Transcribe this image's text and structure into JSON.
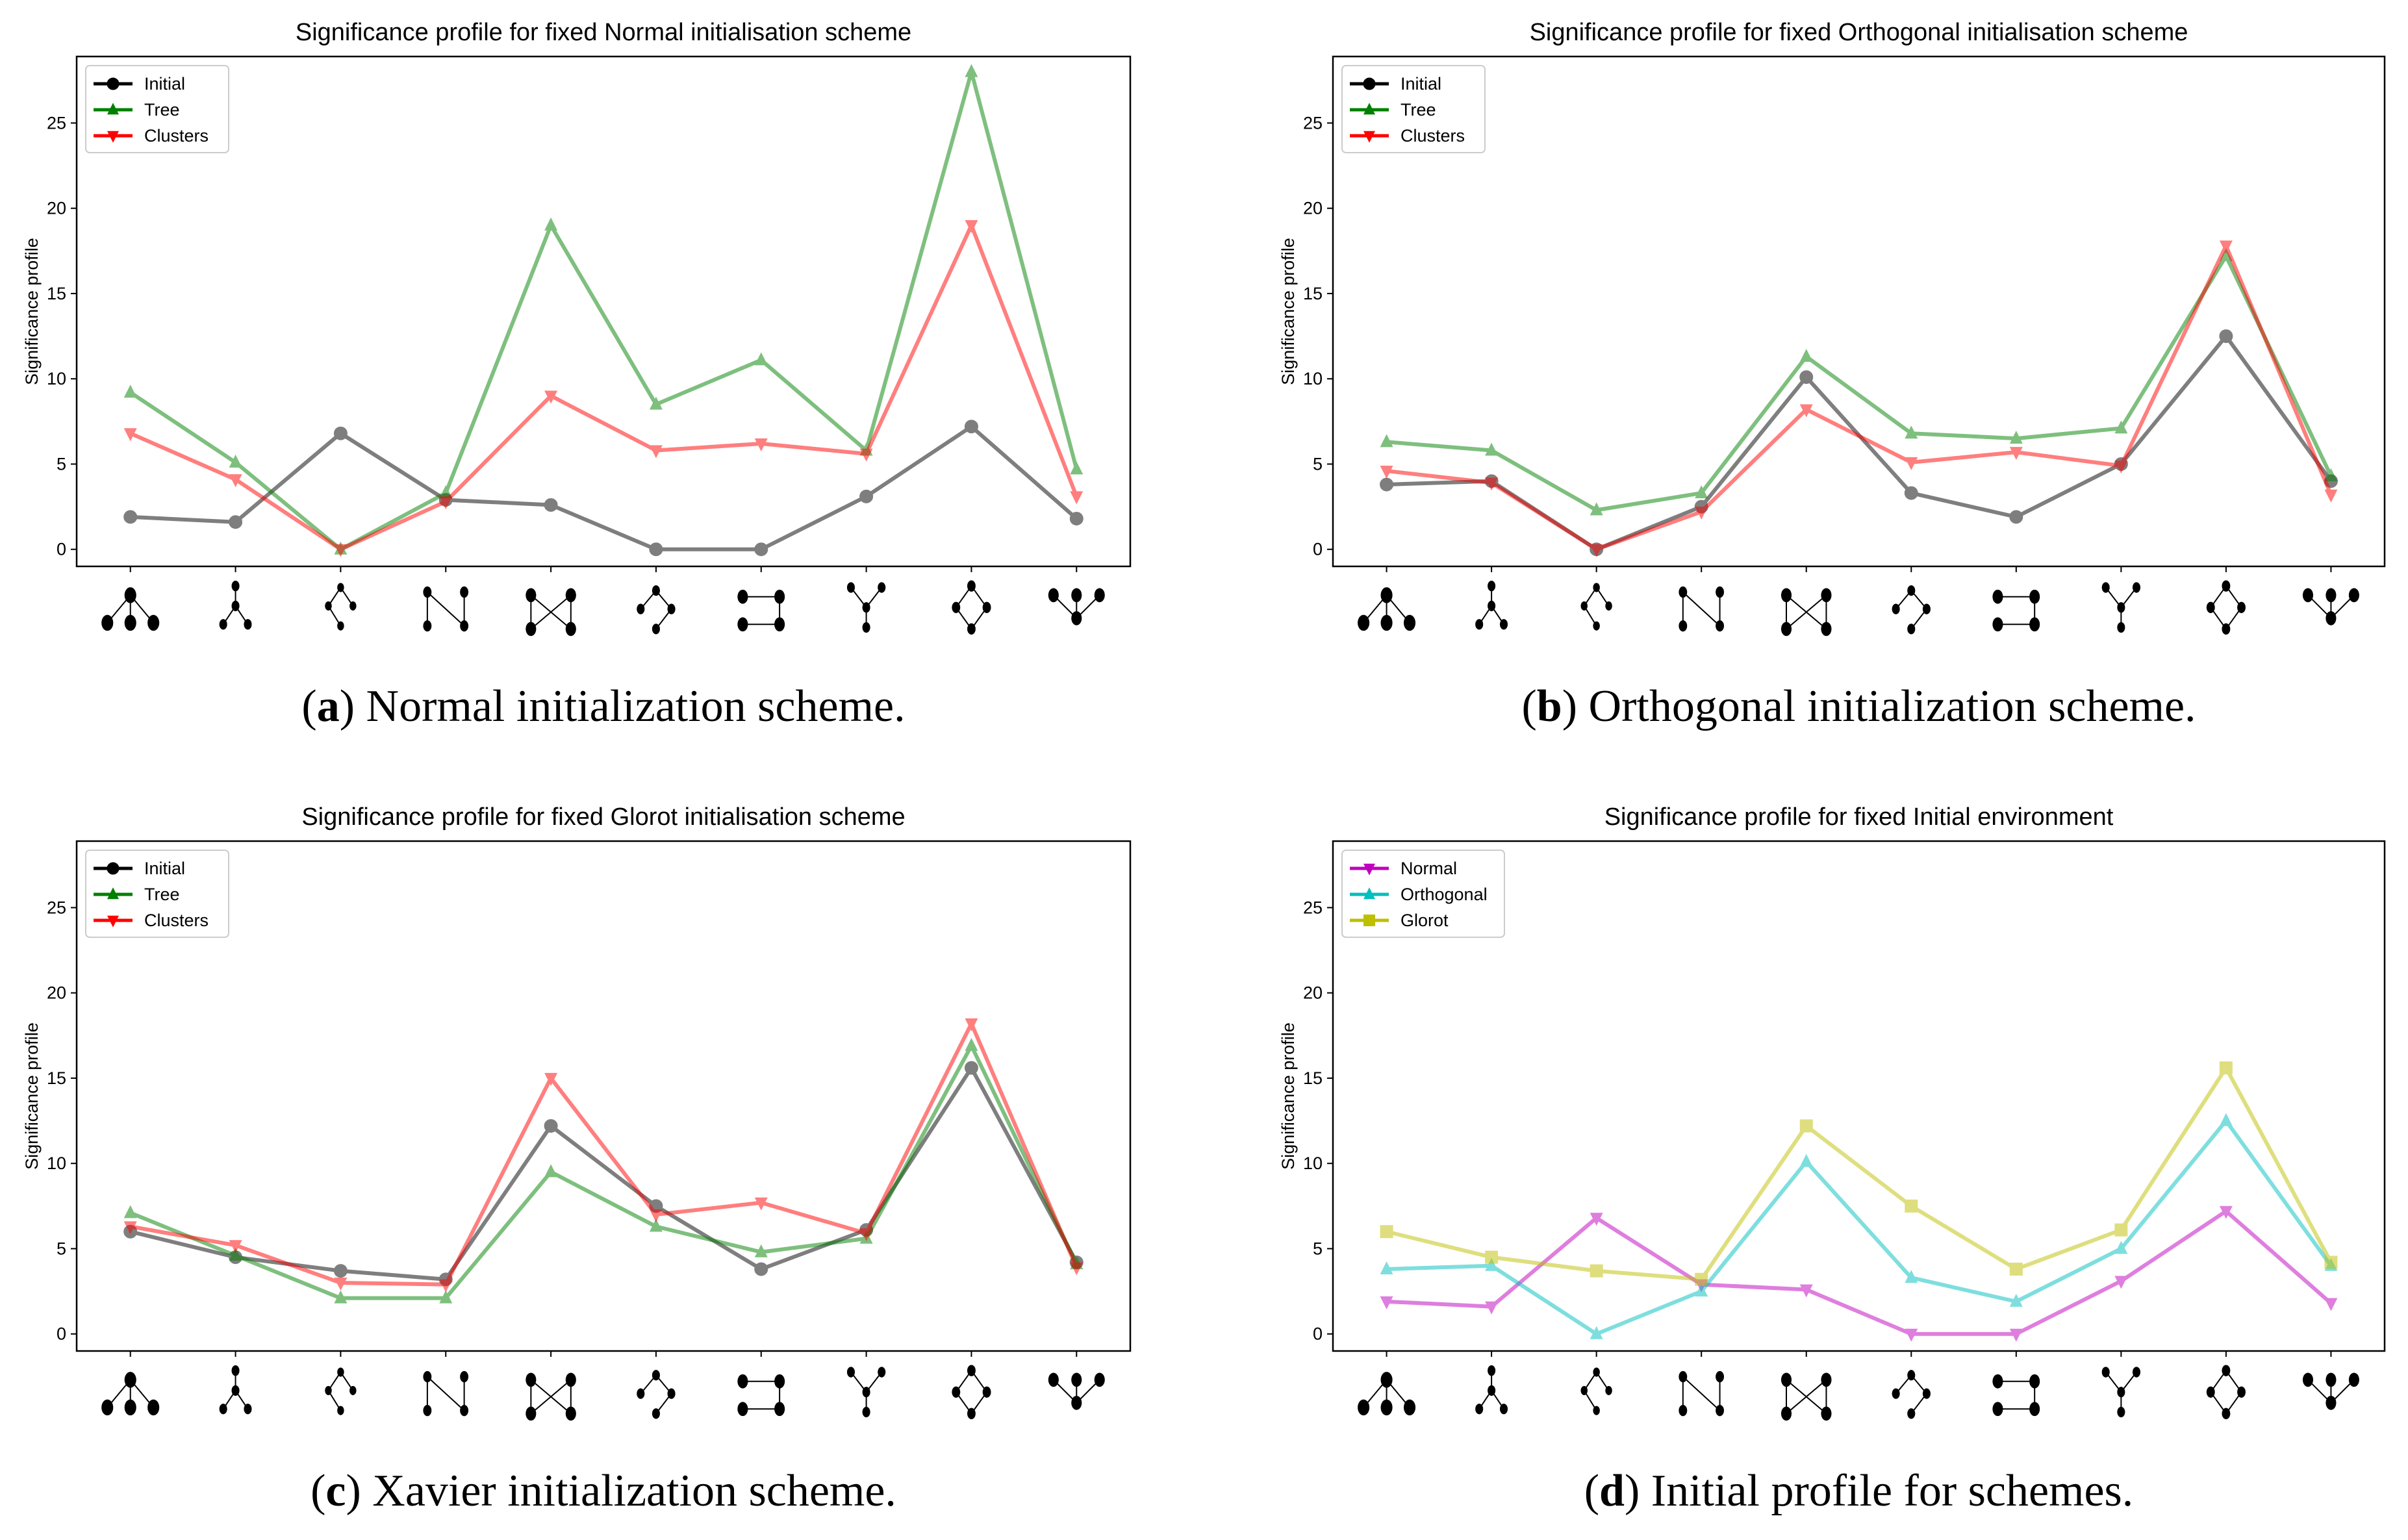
{
  "chart_data": [
    {
      "type": "line",
      "title": "Significance profile for fixed Normal initialisation scheme",
      "caption_letter": "a",
      "caption_text": "Normal initialization scheme.",
      "xlabel": "",
      "ylabel": "Significance profile",
      "ylim": [
        -1.0,
        28.9
      ],
      "yticks": [
        "0",
        "5",
        "10",
        "15",
        "20",
        "25"
      ],
      "x": [
        0,
        1,
        2,
        3,
        4,
        5,
        6,
        7,
        8,
        9
      ],
      "legend_position": "top-left",
      "series": [
        {
          "name": "Initial",
          "color": "#000000",
          "marker": "circle",
          "values": [
            1.9,
            1.6,
            6.8,
            2.9,
            2.6,
            0.0,
            0.0,
            3.1,
            7.2,
            1.8
          ]
        },
        {
          "name": "Tree",
          "color": "#008000",
          "marker": "triangle-up",
          "values": [
            9.2,
            5.1,
            0.0,
            3.3,
            19.0,
            8.5,
            11.1,
            5.8,
            28.0,
            4.7
          ]
        },
        {
          "name": "Clusters",
          "color": "#ff0000",
          "marker": "triangle-down",
          "values": [
            6.8,
            4.1,
            0.0,
            2.8,
            9.0,
            5.8,
            6.2,
            5.6,
            19.0,
            3.1
          ]
        }
      ]
    },
    {
      "type": "line",
      "title": "Significance profile for fixed Orthogonal initialisation scheme",
      "caption_letter": "b",
      "caption_text": "Orthogonal initialization scheme.",
      "xlabel": "",
      "ylabel": "Significance profile",
      "ylim": [
        -1.0,
        28.9
      ],
      "yticks": [
        "0",
        "5",
        "10",
        "15",
        "20",
        "25"
      ],
      "x": [
        0,
        1,
        2,
        3,
        4,
        5,
        6,
        7,
        8,
        9
      ],
      "legend_position": "top-left",
      "series": [
        {
          "name": "Initial",
          "color": "#000000",
          "marker": "circle",
          "values": [
            3.8,
            4.0,
            0.0,
            2.5,
            10.1,
            3.3,
            1.9,
            5.0,
            12.5,
            4.0
          ]
        },
        {
          "name": "Tree",
          "color": "#008000",
          "marker": "triangle-up",
          "values": [
            6.3,
            5.8,
            2.3,
            3.3,
            11.3,
            6.8,
            6.5,
            7.1,
            17.2,
            4.3
          ]
        },
        {
          "name": "Clusters",
          "color": "#ff0000",
          "marker": "triangle-down",
          "values": [
            4.6,
            3.9,
            0.0,
            2.2,
            8.2,
            5.1,
            5.7,
            4.9,
            17.8,
            3.2
          ]
        }
      ]
    },
    {
      "type": "line",
      "title": "Significance profile for fixed Glorot initialisation scheme",
      "caption_letter": "c",
      "caption_text": "Xavier initialization scheme.",
      "xlabel": "",
      "ylabel": "Significance profile",
      "ylim": [
        -1.0,
        28.9
      ],
      "yticks": [
        "0",
        "5",
        "10",
        "15",
        "20",
        "25"
      ],
      "x": [
        0,
        1,
        2,
        3,
        4,
        5,
        6,
        7,
        8,
        9
      ],
      "legend_position": "top-left",
      "series": [
        {
          "name": "Initial",
          "color": "#000000",
          "marker": "circle",
          "values": [
            6.0,
            4.5,
            3.7,
            3.2,
            12.2,
            7.5,
            3.8,
            6.1,
            15.6,
            4.2
          ]
        },
        {
          "name": "Tree",
          "color": "#008000",
          "marker": "triangle-up",
          "values": [
            7.1,
            4.6,
            2.1,
            2.1,
            9.5,
            6.3,
            4.8,
            5.6,
            16.9,
            4.1
          ]
        },
        {
          "name": "Clusters",
          "color": "#ff0000",
          "marker": "triangle-down",
          "values": [
            6.3,
            5.2,
            3.0,
            2.9,
            15.0,
            7.0,
            7.7,
            5.9,
            18.2,
            3.9
          ]
        }
      ]
    },
    {
      "type": "line",
      "title": "Significance profile for fixed Initial environment",
      "caption_letter": "d",
      "caption_text": "Initial profile for schemes.",
      "xlabel": "",
      "ylabel": "Significance profile",
      "ylim": [
        -1.0,
        28.9
      ],
      "yticks": [
        "0",
        "5",
        "10",
        "15",
        "20",
        "25"
      ],
      "x": [
        0,
        1,
        2,
        3,
        4,
        5,
        6,
        7,
        8,
        9
      ],
      "legend_position": "top-left",
      "series": [
        {
          "name": "Normal",
          "color": "#bf00bf",
          "marker": "triangle-down",
          "values": [
            1.9,
            1.6,
            6.8,
            2.9,
            2.6,
            0.0,
            0.0,
            3.1,
            7.2,
            1.8
          ]
        },
        {
          "name": "Orthogonal",
          "color": "#00bfbf",
          "marker": "triangle-up",
          "values": [
            3.8,
            4.0,
            0.0,
            2.5,
            10.1,
            3.3,
            1.9,
            5.0,
            12.5,
            4.0
          ]
        },
        {
          "name": "Glorot",
          "color": "#bfbf00",
          "marker": "square",
          "values": [
            6.0,
            4.5,
            3.7,
            3.2,
            12.2,
            7.5,
            3.8,
            6.1,
            15.6,
            4.2
          ]
        }
      ]
    }
  ]
}
